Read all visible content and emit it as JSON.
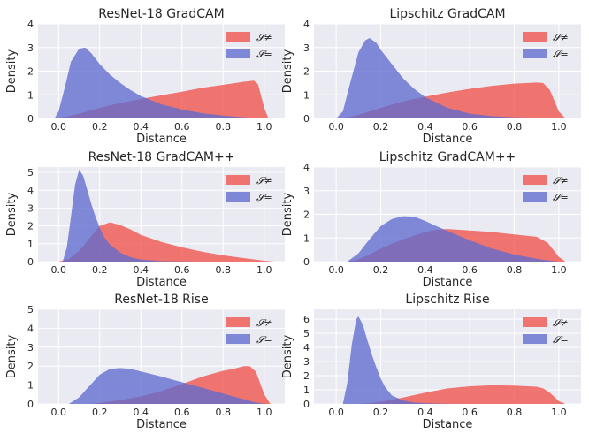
{
  "chart_data": [
    {
      "type": "area",
      "title": "ResNet-18 GradCAM",
      "xlabel": "Distance",
      "ylabel": "Density",
      "xlim": [
        -0.1,
        1.1
      ],
      "ylim": [
        0,
        4
      ],
      "xticks": [
        "0.0",
        "0.2",
        "0.4",
        "0.6",
        "0.8",
        "1.0"
      ],
      "yticks": [
        "0",
        "1",
        "2",
        "3",
        "4"
      ],
      "grid": true,
      "legend_position": "top-right",
      "colors": {
        "S_neq": "#f0524b",
        "S_eq": "#5f6bd0"
      },
      "series": [
        {
          "name": "𝓢≠",
          "x": [
            -0.05,
            0.0,
            0.05,
            0.1,
            0.15,
            0.2,
            0.3,
            0.4,
            0.5,
            0.6,
            0.7,
            0.8,
            0.9,
            0.95,
            0.97,
            1.0,
            1.02
          ],
          "values": [
            0.0,
            0.03,
            0.1,
            0.2,
            0.32,
            0.45,
            0.65,
            0.82,
            0.98,
            1.13,
            1.3,
            1.42,
            1.55,
            1.6,
            1.45,
            0.45,
            0.0
          ]
        },
        {
          "name": "𝓢=",
          "x": [
            -0.02,
            0.0,
            0.03,
            0.06,
            0.1,
            0.13,
            0.16,
            0.2,
            0.25,
            0.3,
            0.35,
            0.4,
            0.5,
            0.6,
            0.7,
            0.8,
            0.9,
            1.0
          ],
          "values": [
            0.0,
            0.3,
            1.3,
            2.4,
            2.95,
            3.0,
            2.75,
            2.3,
            1.85,
            1.5,
            1.2,
            0.95,
            0.6,
            0.38,
            0.22,
            0.12,
            0.05,
            0.0
          ]
        }
      ]
    },
    {
      "type": "area",
      "title": "Lipschitz GradCAM",
      "xlabel": "Distance",
      "ylabel": "Density",
      "xlim": [
        -0.1,
        1.1
      ],
      "ylim": [
        0,
        4
      ],
      "xticks": [
        "0.0",
        "0.2",
        "0.4",
        "0.6",
        "0.8",
        "1.0"
      ],
      "yticks": [
        "0",
        "1",
        "2",
        "3",
        "4"
      ],
      "grid": true,
      "legend_position": "top-right",
      "colors": {
        "S_neq": "#f0524b",
        "S_eq": "#5f6bd0"
      },
      "series": [
        {
          "name": "𝓢≠",
          "x": [
            0.0,
            0.05,
            0.1,
            0.15,
            0.2,
            0.3,
            0.4,
            0.5,
            0.6,
            0.7,
            0.8,
            0.9,
            0.93,
            0.96,
            1.0,
            1.03
          ],
          "values": [
            0.0,
            0.05,
            0.15,
            0.3,
            0.45,
            0.72,
            0.92,
            1.1,
            1.25,
            1.38,
            1.47,
            1.52,
            1.5,
            1.2,
            0.3,
            0.0
          ]
        },
        {
          "name": "𝓢=",
          "x": [
            0.0,
            0.03,
            0.06,
            0.1,
            0.13,
            0.15,
            0.18,
            0.2,
            0.25,
            0.3,
            0.35,
            0.4,
            0.5,
            0.6,
            0.7,
            0.8,
            0.9,
            1.0
          ],
          "values": [
            0.0,
            0.3,
            1.4,
            2.8,
            3.3,
            3.4,
            3.2,
            2.9,
            2.3,
            1.7,
            1.25,
            0.9,
            0.45,
            0.2,
            0.1,
            0.05,
            0.02,
            0.0
          ]
        }
      ]
    },
    {
      "type": "area",
      "title": "ResNet-18 GradCAM++",
      "xlabel": "Distance",
      "ylabel": "Density",
      "xlim": [
        -0.1,
        1.1
      ],
      "ylim": [
        0,
        5.3
      ],
      "xticks": [
        "0.0",
        "0.2",
        "0.4",
        "0.6",
        "0.8",
        "1.0"
      ],
      "yticks": [
        "0",
        "1",
        "2",
        "3",
        "4",
        "5"
      ],
      "grid": true,
      "legend_position": "top-right",
      "colors": {
        "S_neq": "#f0524b",
        "S_eq": "#5f6bd0"
      },
      "series": [
        {
          "name": "𝓢≠",
          "x": [
            0.0,
            0.05,
            0.1,
            0.15,
            0.2,
            0.25,
            0.3,
            0.35,
            0.4,
            0.5,
            0.6,
            0.7,
            0.8,
            0.9,
            1.0,
            1.05
          ],
          "values": [
            0.0,
            0.15,
            0.6,
            1.3,
            2.0,
            2.2,
            2.05,
            1.8,
            1.5,
            1.1,
            0.8,
            0.55,
            0.35,
            0.2,
            0.05,
            0.0
          ]
        },
        {
          "name": "𝓢=",
          "x": [
            0.02,
            0.04,
            0.06,
            0.08,
            0.1,
            0.12,
            0.14,
            0.16,
            0.18,
            0.2,
            0.22,
            0.25,
            0.3,
            0.35,
            0.4,
            0.5,
            0.6,
            0.7
          ],
          "values": [
            0.0,
            0.8,
            2.5,
            4.3,
            5.15,
            4.8,
            4.0,
            3.2,
            2.5,
            1.9,
            1.4,
            0.95,
            0.5,
            0.25,
            0.12,
            0.03,
            0.01,
            0.0
          ]
        }
      ]
    },
    {
      "type": "area",
      "title": "Lipschitz GradCAM++",
      "xlabel": "Distance",
      "ylabel": "Density",
      "xlim": [
        -0.1,
        1.1
      ],
      "ylim": [
        0,
        4
      ],
      "xticks": [
        "0.0",
        "0.2",
        "0.4",
        "0.6",
        "0.8",
        "1.0"
      ],
      "yticks": [
        "0",
        "1",
        "2",
        "3",
        "4"
      ],
      "grid": true,
      "legend_position": "top-right",
      "colors": {
        "S_neq": "#f0524b",
        "S_eq": "#5f6bd0"
      },
      "series": [
        {
          "name": "𝓢≠",
          "x": [
            0.05,
            0.1,
            0.15,
            0.2,
            0.3,
            0.4,
            0.45,
            0.5,
            0.6,
            0.7,
            0.8,
            0.9,
            0.95,
            1.0,
            1.03
          ],
          "values": [
            0.0,
            0.1,
            0.3,
            0.55,
            0.95,
            1.25,
            1.35,
            1.38,
            1.32,
            1.25,
            1.15,
            1.05,
            0.8,
            0.2,
            0.0
          ]
        },
        {
          "name": "𝓢=",
          "x": [
            0.05,
            0.1,
            0.15,
            0.2,
            0.25,
            0.3,
            0.35,
            0.4,
            0.45,
            0.5,
            0.6,
            0.7,
            0.8,
            0.9,
            0.95,
            1.0
          ],
          "values": [
            0.0,
            0.35,
            0.95,
            1.5,
            1.8,
            1.92,
            1.9,
            1.72,
            1.5,
            1.3,
            0.9,
            0.55,
            0.3,
            0.12,
            0.05,
            0.0
          ]
        }
      ]
    },
    {
      "type": "area",
      "title": "ResNet-18 Rise",
      "xlabel": "Distance",
      "ylabel": "Density",
      "xlim": [
        -0.1,
        1.1
      ],
      "ylim": [
        0,
        5
      ],
      "xticks": [
        "0.0",
        "0.2",
        "0.4",
        "0.6",
        "0.8",
        "1.0"
      ],
      "yticks": [
        "0",
        "1",
        "2",
        "3",
        "4",
        "5"
      ],
      "grid": true,
      "legend_position": "top-right",
      "colors": {
        "S_neq": "#f0524b",
        "S_eq": "#5f6bd0"
      },
      "series": [
        {
          "name": "𝓢≠",
          "x": [
            0.15,
            0.2,
            0.3,
            0.4,
            0.5,
            0.6,
            0.7,
            0.8,
            0.85,
            0.9,
            0.93,
            0.96,
            1.0,
            1.03
          ],
          "values": [
            0.0,
            0.05,
            0.2,
            0.4,
            0.68,
            1.05,
            1.45,
            1.75,
            1.85,
            2.0,
            2.0,
            1.7,
            0.5,
            0.0
          ]
        },
        {
          "name": "𝓢=",
          "x": [
            0.05,
            0.1,
            0.15,
            0.2,
            0.25,
            0.3,
            0.35,
            0.4,
            0.5,
            0.6,
            0.7,
            0.8,
            0.9,
            0.95,
            1.0
          ],
          "values": [
            0.0,
            0.35,
            0.95,
            1.55,
            1.85,
            1.9,
            1.85,
            1.72,
            1.45,
            1.15,
            0.85,
            0.55,
            0.25,
            0.1,
            0.0
          ]
        }
      ]
    },
    {
      "type": "area",
      "title": "Lipschitz Rise",
      "xlabel": "Distance",
      "ylabel": "Density",
      "xlim": [
        -0.1,
        1.1
      ],
      "ylim": [
        0,
        6.7
      ],
      "xticks": [
        "0.0",
        "0.2",
        "0.4",
        "0.6",
        "0.8",
        "1.0"
      ],
      "yticks": [
        "0",
        "1",
        "2",
        "3",
        "4",
        "5",
        "6"
      ],
      "grid": true,
      "legend_position": "top-right",
      "colors": {
        "S_neq": "#f0524b",
        "S_eq": "#5f6bd0"
      },
      "series": [
        {
          "name": "𝓢≠",
          "x": [
            0.1,
            0.15,
            0.2,
            0.3,
            0.4,
            0.5,
            0.6,
            0.7,
            0.8,
            0.9,
            0.93,
            0.96,
            1.0,
            1.03
          ],
          "values": [
            0.0,
            0.05,
            0.15,
            0.45,
            0.8,
            1.1,
            1.25,
            1.32,
            1.3,
            1.22,
            1.1,
            0.8,
            0.2,
            0.0
          ]
        },
        {
          "name": "𝓢=",
          "x": [
            0.03,
            0.05,
            0.07,
            0.09,
            0.1,
            0.12,
            0.14,
            0.16,
            0.18,
            0.2,
            0.22,
            0.25,
            0.3,
            0.35,
            0.4,
            0.5,
            0.6
          ],
          "values": [
            0.0,
            1.5,
            4.2,
            6.0,
            6.2,
            5.6,
            4.5,
            3.5,
            2.6,
            1.8,
            1.2,
            0.6,
            0.25,
            0.1,
            0.05,
            0.01,
            0.0
          ]
        }
      ]
    }
  ]
}
